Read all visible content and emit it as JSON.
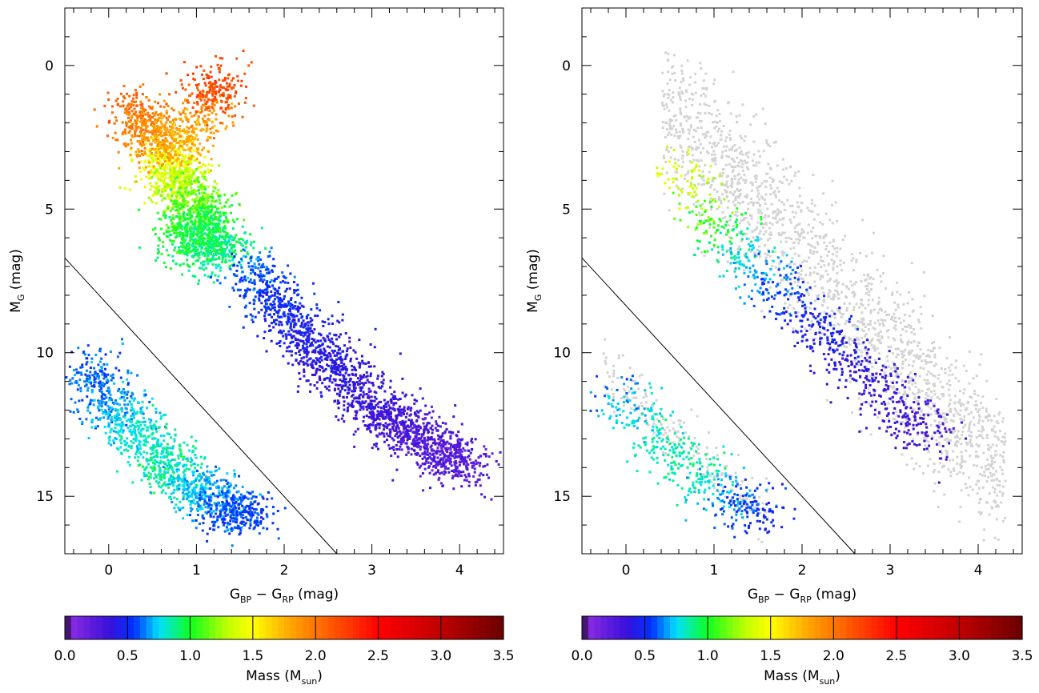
{
  "chart_data": [
    {
      "type": "scatter",
      "panel": "left",
      "description_colour": "points coloured by mass",
      "xlabel": {
        "main": "G",
        "sub1": "BP",
        "mid": " − G",
        "sub2": "RP",
        "unit": " (mag)"
      },
      "ylabel": {
        "main": "M",
        "sub": "G",
        "unit": " (mag)"
      },
      "xlim": [
        -0.5,
        4.5
      ],
      "ylim": [
        17.0,
        -2.0
      ],
      "y_inverted": true,
      "xticks": [
        0,
        1,
        2,
        3,
        4
      ],
      "xtick_labels": [
        "0",
        "1",
        "2",
        "3",
        "4"
      ],
      "yticks": [
        0,
        5,
        10,
        15
      ],
      "ytick_labels": [
        "0",
        "5",
        "10",
        "15"
      ],
      "separator_line": {
        "x": [
          -0.5,
          2.6
        ],
        "y": [
          6.7,
          17.0
        ]
      },
      "series": [
        {
          "x": [
            0.6,
            0.7,
            0.75,
            0.8,
            0.9,
            1.0,
            1.1,
            1.2,
            1.3,
            1.0,
            0.9
          ],
          "y": [
            3.2,
            3.5,
            3.8,
            4.0,
            4.5,
            5.0,
            5.5,
            6.0,
            6.5,
            6.2,
            5.8
          ],
          "mass": [
            1.5,
            1.45,
            1.4,
            1.35,
            1.2,
            1.1,
            1.0,
            0.95,
            0.85,
            0.9,
            1.0
          ]
        },
        {
          "x": [
            0.2,
            0.4,
            0.5,
            0.7,
            1.0,
            1.2
          ],
          "y": [
            1.5,
            2.0,
            2.4,
            2.8,
            2.2,
            0.8
          ],
          "mass": [
            2.1,
            2.0,
            1.9,
            1.8,
            1.75,
            2.2
          ]
        },
        {
          "x": [
            1.6,
            1.8,
            2.0,
            2.2,
            2.4,
            2.6,
            2.8,
            3.0,
            3.2,
            3.4,
            3.6,
            3.8,
            4.0
          ],
          "y": [
            7.0,
            7.8,
            8.6,
            9.3,
            10.0,
            10.6,
            11.2,
            11.8,
            12.3,
            12.7,
            13.0,
            13.4,
            13.8
          ],
          "mass": [
            0.6,
            0.55,
            0.5,
            0.45,
            0.42,
            0.4,
            0.38,
            0.35,
            0.33,
            0.3,
            0.28,
            0.26,
            0.24
          ]
        },
        {
          "x": [
            -0.3,
            -0.1,
            0.1,
            0.3,
            0.5,
            0.7,
            0.9,
            1.1,
            1.3,
            1.5
          ],
          "y": [
            10.5,
            11.3,
            12.0,
            12.7,
            13.4,
            14.0,
            14.5,
            14.9,
            15.3,
            15.6
          ],
          "mass": [
            0.6,
            0.6,
            0.7,
            0.8,
            0.8,
            0.9,
            0.75,
            0.7,
            0.65,
            0.55
          ]
        }
      ]
    },
    {
      "type": "scatter",
      "panel": "right",
      "xlabel": {
        "main": "G",
        "sub1": "BP",
        "mid": " − G",
        "sub2": "RP",
        "unit": " (mag)"
      },
      "ylabel": {
        "main": "M",
        "sub": "G",
        "unit": " (mag)"
      },
      "xlim": [
        -0.5,
        4.5
      ],
      "ylim": [
        17.0,
        -2.0
      ],
      "y_inverted": true,
      "xticks": [
        0,
        1,
        2,
        3,
        4
      ],
      "xtick_labels": [
        "0",
        "1",
        "2",
        "3",
        "4"
      ],
      "yticks": [
        0,
        5,
        10,
        15
      ],
      "ytick_labels": [
        "0",
        "5",
        "10",
        "15"
      ],
      "separator_line": {
        "x": [
          -0.5,
          2.6
        ],
        "y": [
          6.7,
          17.0
        ]
      },
      "background_points_color": "#d3d3d3",
      "series": [
        {
          "x": [
            0.6,
            0.8,
            1.0,
            1.2,
            1.4,
            1.6,
            1.8,
            2.0,
            2.2,
            2.4,
            2.6,
            2.8,
            3.0,
            3.2,
            3.4
          ],
          "y": [
            3.5,
            4.5,
            5.5,
            6.2,
            6.8,
            7.3,
            8.0,
            8.7,
            9.3,
            9.9,
            10.5,
            11.0,
            11.6,
            12.2,
            12.8
          ],
          "mass": [
            1.4,
            1.3,
            1.05,
            0.9,
            0.75,
            0.65,
            0.55,
            0.48,
            0.45,
            0.42,
            0.4,
            0.38,
            0.35,
            0.32,
            0.3
          ]
        },
        {
          "x": [
            -0.1,
            0.1,
            0.3,
            0.5,
            0.7,
            0.9,
            1.1,
            1.3,
            1.5
          ],
          "y": [
            11.3,
            12.0,
            12.7,
            13.4,
            14.0,
            14.5,
            14.9,
            15.2,
            15.6
          ],
          "mass": [
            0.6,
            0.75,
            0.85,
            0.8,
            0.9,
            0.8,
            0.7,
            0.6,
            0.5
          ]
        }
      ]
    }
  ],
  "colorbar": {
    "title_main": "Mass (M",
    "title_sub": "sun",
    "title_close": ")",
    "range": [
      0.0,
      3.5
    ],
    "ticks": [
      0.0,
      0.5,
      1.0,
      1.5,
      2.0,
      2.5,
      3.0,
      3.5
    ],
    "tick_labels": [
      "0.0",
      "0.5",
      "1.0",
      "1.5",
      "2.0",
      "2.5",
      "3.0",
      "3.5"
    ],
    "colormap_stops": [
      {
        "v": 0.0,
        "color": "#000000"
      },
      {
        "v": 0.05,
        "color": "#8a2be2"
      },
      {
        "v": 0.35,
        "color": "#3a10d8"
      },
      {
        "v": 0.55,
        "color": "#0030ff"
      },
      {
        "v": 0.75,
        "color": "#00e0ff"
      },
      {
        "v": 1.0,
        "color": "#10ff20"
      },
      {
        "v": 1.3,
        "color": "#c0ff00"
      },
      {
        "v": 1.5,
        "color": "#ffff00"
      },
      {
        "v": 1.8,
        "color": "#ffa500"
      },
      {
        "v": 2.3,
        "color": "#ff3000"
      },
      {
        "v": 2.5,
        "color": "#ff0000"
      },
      {
        "v": 3.0,
        "color": "#c00000"
      },
      {
        "v": 3.5,
        "color": "#6a0000"
      }
    ]
  }
}
